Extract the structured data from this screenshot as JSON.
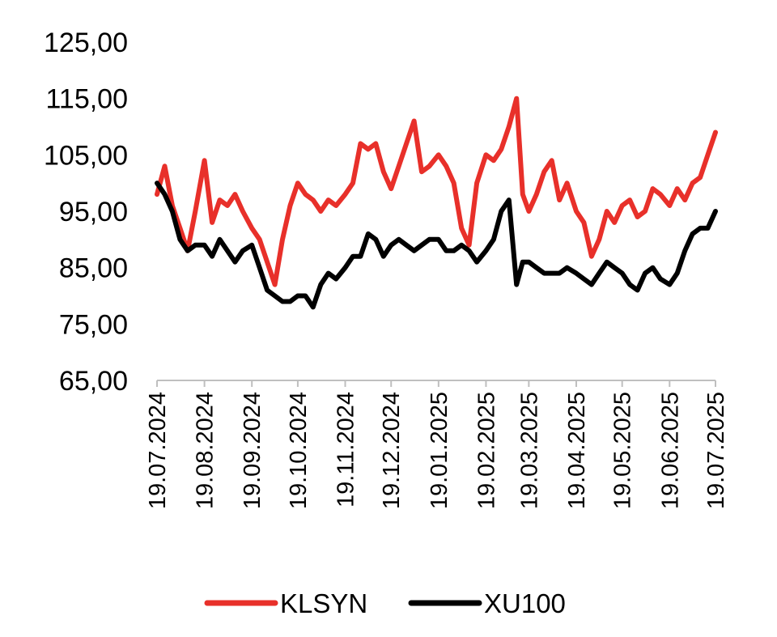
{
  "chart_data": {
    "type": "line",
    "title": "",
    "xlabel": "",
    "ylabel": "",
    "ylim": [
      65,
      125
    ],
    "yticks": [
      65,
      75,
      85,
      95,
      105,
      115,
      125
    ],
    "ytick_labels": [
      "65,00",
      "75,00",
      "85,00",
      "95,00",
      "105,00",
      "115,00",
      "125,00"
    ],
    "xtick_labels": [
      "19.07.2024",
      "19.08.2024",
      "19.09.2024",
      "19.10.2024",
      "19.11.2024",
      "19.12.2024",
      "19.01.2025",
      "19.02.2025",
      "19.03.2025",
      "19.04.2025",
      "19.05.2025",
      "19.06.2025",
      "19.07.2025"
    ],
    "grid": false,
    "legend": "bottom",
    "series": [
      {
        "name": "KLSYN",
        "color": "#e8302a",
        "x": [
          "19.07.2024",
          "2024-07-24",
          "2024-07-29",
          "2024-08-03",
          "2024-08-08",
          "2024-08-13",
          "19.08.2024",
          "2024-08-24",
          "2024-08-29",
          "2024-09-03",
          "2024-09-08",
          "2024-09-13",
          "19.09.2024",
          "2024-09-24",
          "2024-09-29",
          "2024-10-04",
          "2024-10-09",
          "2024-10-14",
          "19.10.2024",
          "2024-10-24",
          "2024-10-29",
          "2024-11-03",
          "2024-11-08",
          "2024-11-13",
          "19.11.2024",
          "2024-11-24",
          "2024-11-29",
          "2024-12-04",
          "2024-12-09",
          "2024-12-14",
          "19.12.2024",
          "2024-12-24",
          "2024-12-29",
          "2025-01-03",
          "2025-01-08",
          "2025-01-13",
          "19.01.2025",
          "2025-01-24",
          "2025-01-29",
          "2025-02-03",
          "2025-02-08",
          "2025-02-13",
          "19.02.2025",
          "2025-02-24",
          "2025-03-01",
          "2025-03-06",
          "2025-03-11",
          "2025-03-15",
          "19.03.2025",
          "2025-03-24",
          "2025-03-29",
          "2025-04-03",
          "2025-04-08",
          "2025-04-13",
          "19.04.2025",
          "2025-04-24",
          "2025-04-29",
          "2025-05-04",
          "2025-05-09",
          "2025-05-14",
          "19.05.2025",
          "2025-05-24",
          "2025-05-29",
          "2025-06-03",
          "2025-06-08",
          "2025-06-13",
          "19.06.2025",
          "2025-06-24",
          "2025-06-29",
          "2025-07-04",
          "2025-07-09",
          "2025-07-14",
          "19.07.2025"
        ],
        "values": [
          98,
          103,
          96,
          92,
          88,
          95,
          104,
          93,
          97,
          96,
          98,
          95,
          92,
          90,
          86,
          82,
          90,
          96,
          100,
          98,
          97,
          95,
          97,
          96,
          98,
          100,
          107,
          106,
          107,
          102,
          99,
          103,
          107,
          111,
          102,
          103,
          105,
          103,
          100,
          92,
          89,
          100,
          105,
          104,
          106,
          110,
          115,
          98,
          95,
          98,
          102,
          104,
          97,
          100,
          95,
          93,
          87,
          90,
          95,
          93,
          96,
          97,
          94,
          95,
          99,
          98,
          96,
          99,
          97,
          100,
          101,
          105,
          109
        ]
      },
      {
        "name": "XU100",
        "color": "#000000",
        "x": [
          "19.07.2024",
          "2024-07-24",
          "2024-07-29",
          "2024-08-03",
          "2024-08-08",
          "2024-08-13",
          "19.08.2024",
          "2024-08-24",
          "2024-08-29",
          "2024-09-03",
          "2024-09-08",
          "2024-09-13",
          "19.09.2024",
          "2024-09-24",
          "2024-09-29",
          "2024-10-04",
          "2024-10-09",
          "2024-10-14",
          "19.10.2024",
          "2024-10-24",
          "2024-10-29",
          "2024-11-03",
          "2024-11-08",
          "2024-11-13",
          "19.11.2024",
          "2024-11-24",
          "2024-11-29",
          "2024-12-04",
          "2024-12-09",
          "2024-12-14",
          "19.12.2024",
          "2024-12-24",
          "2024-12-29",
          "2025-01-03",
          "2025-01-08",
          "2025-01-13",
          "19.01.2025",
          "2025-01-24",
          "2025-01-29",
          "2025-02-03",
          "2025-02-08",
          "2025-02-13",
          "19.02.2025",
          "2025-02-24",
          "2025-03-01",
          "2025-03-06",
          "2025-03-11",
          "2025-03-15",
          "19.03.2025",
          "2025-03-24",
          "2025-03-29",
          "2025-04-03",
          "2025-04-08",
          "2025-04-13",
          "19.04.2025",
          "2025-04-24",
          "2025-04-29",
          "2025-05-04",
          "2025-05-09",
          "2025-05-14",
          "19.05.2025",
          "2025-05-24",
          "2025-05-29",
          "2025-06-03",
          "2025-06-08",
          "2025-06-13",
          "19.06.2025",
          "2025-06-24",
          "2025-06-29",
          "2025-07-04",
          "2025-07-09",
          "2025-07-14",
          "19.07.2025"
        ],
        "values": [
          100,
          98,
          95,
          90,
          88,
          89,
          89,
          87,
          90,
          88,
          86,
          88,
          89,
          85,
          81,
          80,
          79,
          79,
          80,
          80,
          78,
          82,
          84,
          83,
          85,
          87,
          87,
          91,
          90,
          87,
          89,
          90,
          89,
          88,
          89,
          90,
          90,
          88,
          88,
          89,
          88,
          86,
          88,
          90,
          95,
          97,
          82,
          86,
          86,
          85,
          84,
          84,
          84,
          85,
          84,
          83,
          82,
          84,
          86,
          85,
          84,
          82,
          81,
          84,
          85,
          83,
          82,
          84,
          88,
          91,
          92,
          92,
          95
        ]
      }
    ]
  }
}
